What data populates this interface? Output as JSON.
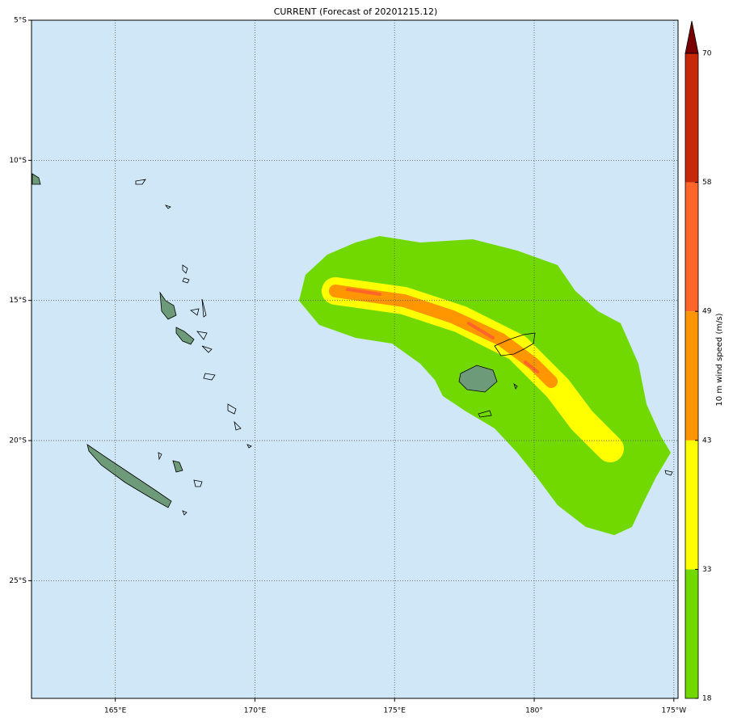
{
  "title": "CURRENT (Forecast of 20201215.12)",
  "map": {
    "lonlim": [
      162.0,
      185.15
    ],
    "latlim": [
      -5,
      -29.2
    ],
    "lonticks": [
      {
        "value": 165,
        "label": "165°E"
      },
      {
        "value": 170,
        "label": "170°E"
      },
      {
        "value": 175,
        "label": "175°E"
      },
      {
        "value": 180,
        "label": "180°"
      },
      {
        "value": 185,
        "label": "175°W"
      }
    ],
    "latticks": [
      {
        "value": -5,
        "label": "5°S"
      },
      {
        "value": -10,
        "label": "10°S"
      },
      {
        "value": -15,
        "label": "15°S"
      },
      {
        "value": -20,
        "label": "20°S"
      },
      {
        "value": -25,
        "label": "25°S"
      }
    ],
    "grid": true
  },
  "colorbar": {
    "label": "10 m wind speed (m/s)",
    "ticks": [
      18,
      33,
      43,
      49,
      58,
      70
    ],
    "colors": [
      "#72d900",
      "#ffff00",
      "#ff9600",
      "#ff6428",
      "#c8280a"
    ],
    "extend_color": "#7a0000"
  }
}
